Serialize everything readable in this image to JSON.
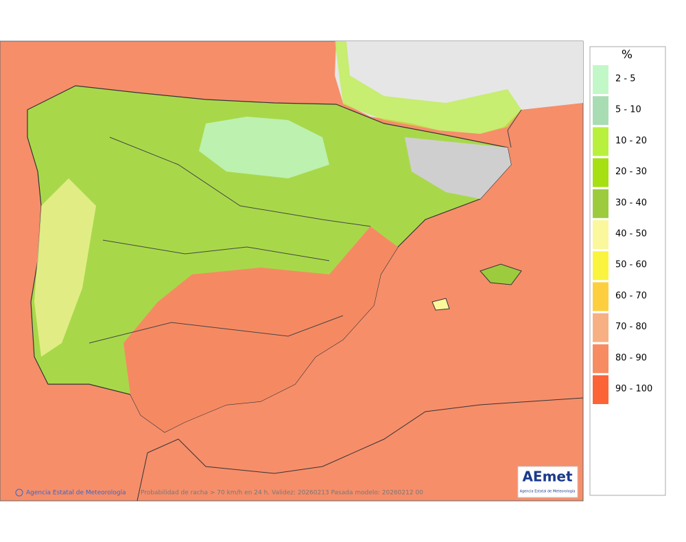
{
  "legend": {
    "unit": "%",
    "entries": [
      {
        "label": "2 - 5",
        "color": "#c2f7c8"
      },
      {
        "label": "5 - 10",
        "color": "#a8ddb4"
      },
      {
        "label": "10 - 20",
        "color": "#b9f03e"
      },
      {
        "label": "20 - 30",
        "color": "#a6e012"
      },
      {
        "label": "30 - 40",
        "color": "#9ccc3e"
      },
      {
        "label": "40 - 50",
        "color": "#faf79c"
      },
      {
        "label": "50 - 60",
        "color": "#fbf43e"
      },
      {
        "label": "60 - 70",
        "color": "#fdcf3e"
      },
      {
        "label": "70 - 80",
        "color": "#f7b083"
      },
      {
        "label": "80 - 90",
        "color": "#f78b62"
      },
      {
        "label": "90 - 100",
        "color": "#fc6438"
      }
    ]
  },
  "footer": {
    "credit": "Agencia Estatal de Meteorología",
    "caption": "Probabilidad de racha > 70 km/h en 24 h. Validez: 20260213 Pasada modelo: 20260212 00"
  },
  "logo": {
    "name": "AEmet",
    "subtitle": "Agencia Estatal de Meteorología"
  }
}
